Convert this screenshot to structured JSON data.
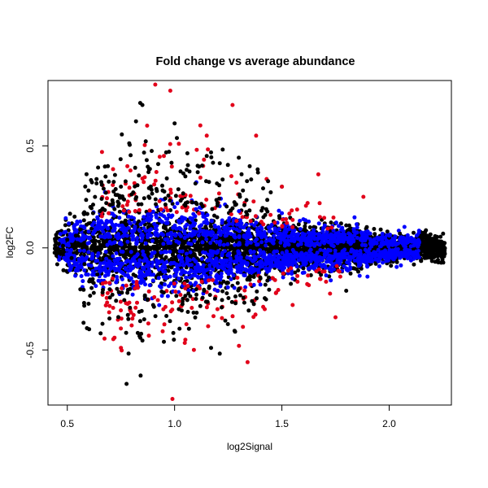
{
  "chart_data": {
    "type": "scatter",
    "title": "Fold change vs average abundance",
    "xlabel": "log2Signal",
    "ylabel": "log2FC",
    "xlim": [
      0.41,
      2.29
    ],
    "ylim": [
      -0.77,
      0.82
    ],
    "xticks": [
      0.5,
      1.0,
      1.5,
      2.0
    ],
    "xtick_labels": [
      "0.5",
      "1.0",
      "1.5",
      "2.0"
    ],
    "yticks": [
      -0.5,
      0.0,
      0.5
    ],
    "ytick_labels": [
      "-0.5",
      "0.0",
      "0.5"
    ],
    "grid": false,
    "series_colors": [
      "#000000",
      "#0000ff",
      "#e2001a"
    ],
    "series": [
      {
        "color": "#000000",
        "description_points": [
          [
            0.45,
            -0.01
          ],
          [
            0.46,
            0.02
          ],
          [
            0.47,
            -0.03
          ],
          [
            0.48,
            0.01
          ],
          [
            0.5,
            0.04
          ],
          [
            0.52,
            -0.05
          ],
          [
            0.54,
            0.06
          ],
          [
            0.56,
            0.09
          ],
          [
            0.58,
            -0.08
          ],
          [
            0.6,
            0.12
          ],
          [
            0.62,
            0.17
          ],
          [
            0.64,
            -0.13
          ],
          [
            0.66,
            0.24
          ],
          [
            0.68,
            0.27
          ],
          [
            0.7,
            0.21
          ],
          [
            0.72,
            0.19
          ],
          [
            0.75,
            0.3
          ],
          [
            0.78,
            -0.22
          ],
          [
            0.8,
            0.14
          ],
          [
            0.82,
            0.62
          ],
          [
            0.84,
            0.71
          ],
          [
            0.85,
            0.7
          ],
          [
            0.87,
            0.43
          ],
          [
            0.9,
            -0.28
          ],
          [
            0.95,
            -0.46
          ],
          [
            1.0,
            0.61
          ],
          [
            1.02,
            -0.3
          ],
          [
            1.05,
            0.35
          ],
          [
            1.1,
            -0.25
          ],
          [
            1.17,
            -0.49
          ],
          [
            1.2,
            0.22
          ],
          [
            1.3,
            -0.2
          ],
          [
            1.35,
            0.4
          ],
          [
            1.4,
            -0.15
          ],
          [
            1.5,
            0.3
          ],
          [
            1.6,
            -0.1
          ],
          [
            1.7,
            0.12
          ],
          [
            1.8,
            -0.21
          ],
          [
            1.9,
            0.08
          ],
          [
            2.0,
            0.05
          ],
          [
            2.05,
            0.07
          ],
          [
            2.1,
            -0.05
          ],
          [
            2.15,
            0.06
          ],
          [
            2.2,
            0.03
          ],
          [
            2.25,
            0.0
          ]
        ]
      },
      {
        "color": "#0000ff",
        "description_points": [
          [
            0.48,
            0.03
          ],
          [
            0.55,
            -0.11
          ],
          [
            0.6,
            0.08
          ],
          [
            0.65,
            0.11
          ],
          [
            0.7,
            -0.09
          ],
          [
            0.8,
            0.15
          ],
          [
            0.9,
            -0.16
          ],
          [
            1.0,
            0.2
          ],
          [
            1.1,
            0.19
          ],
          [
            1.2,
            -0.21
          ],
          [
            1.3,
            0.18
          ],
          [
            1.4,
            -0.18
          ],
          [
            1.5,
            0.17
          ],
          [
            1.55,
            -0.15
          ],
          [
            1.6,
            0.14
          ],
          [
            1.7,
            0.11
          ],
          [
            1.8,
            -0.1
          ],
          [
            1.9,
            0.08
          ],
          [
            2.0,
            0.06
          ],
          [
            2.1,
            -0.05
          ]
        ]
      },
      {
        "color": "#e2001a",
        "description_points": [
          [
            0.72,
            -0.44
          ],
          [
            0.75,
            -0.49
          ],
          [
            0.78,
            0.4
          ],
          [
            0.8,
            -0.38
          ],
          [
            0.85,
            0.34
          ],
          [
            0.88,
            -0.43
          ],
          [
            0.91,
            0.8
          ],
          [
            0.95,
            0.45
          ],
          [
            0.98,
            0.77
          ],
          [
            0.99,
            -0.74
          ],
          [
            1.02,
            0.51
          ],
          [
            1.05,
            -0.45
          ],
          [
            1.09,
            -0.5
          ],
          [
            1.12,
            0.6
          ],
          [
            1.15,
            0.55
          ],
          [
            1.2,
            -0.3
          ],
          [
            1.27,
            0.7
          ],
          [
            1.3,
            -0.48
          ],
          [
            1.34,
            -0.56
          ],
          [
            1.38,
            0.55
          ],
          [
            1.42,
            -0.3
          ],
          [
            1.5,
            0.3
          ],
          [
            1.55,
            -0.28
          ],
          [
            1.62,
            0.22
          ],
          [
            1.67,
            0.36
          ],
          [
            1.75,
            -0.34
          ],
          [
            1.88,
            0.25
          ]
        ]
      }
    ]
  }
}
